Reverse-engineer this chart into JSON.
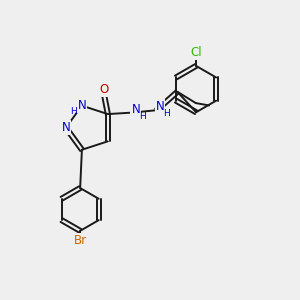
{
  "bg_color": "#efefef",
  "bond_color": "#1a1a1a",
  "N_color": "#0000cc",
  "O_color": "#cc0000",
  "Br_color": "#cc6600",
  "Cl_color": "#33bb00",
  "font_size": 8.5,
  "lw": 1.4,
  "xlim": [
    0,
    10
  ],
  "ylim": [
    0,
    10
  ]
}
